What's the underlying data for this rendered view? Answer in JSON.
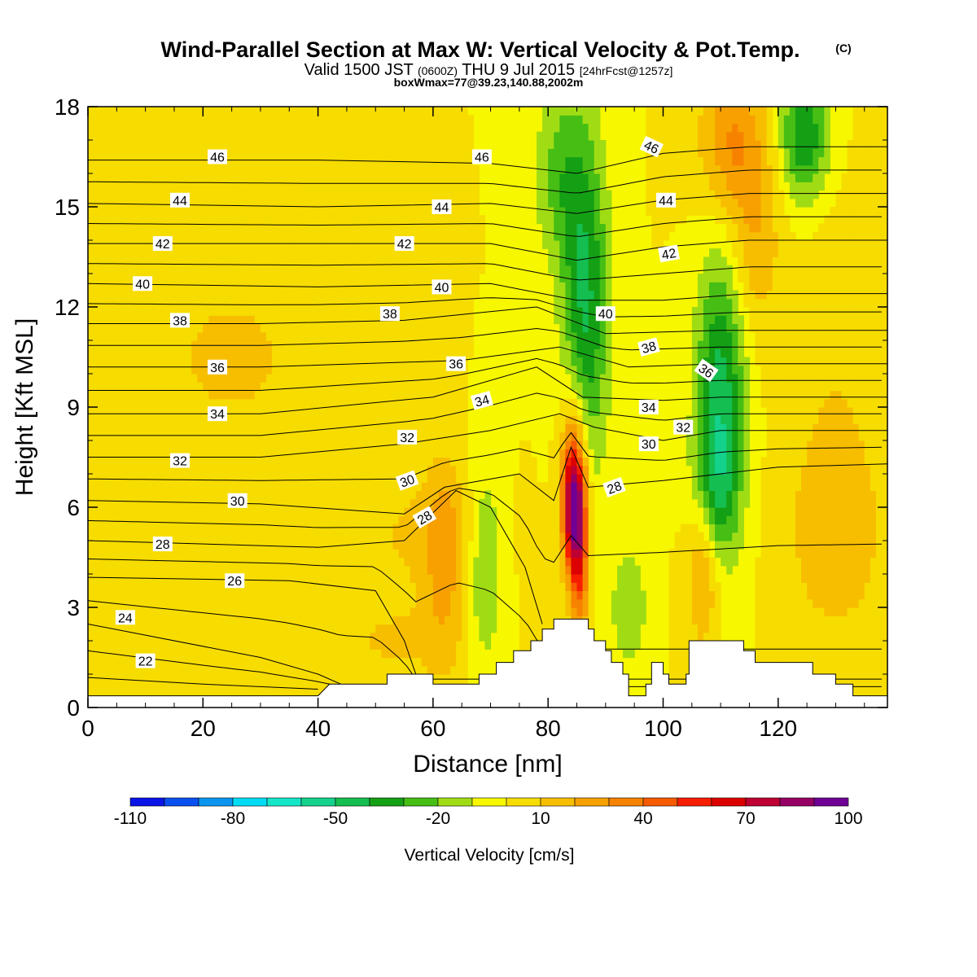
{
  "chart_data": {
    "type": "heatmap",
    "title": "Wind-Parallel Section at Max W: Vertical Velocity & Pot.Temp.",
    "title_mark": "(C)",
    "subtitle_valid": "Valid 1500 JST",
    "subtitle_utc": "(0600Z)",
    "subtitle_date": "THU 9 Jul 2015",
    "subtitle_fcst": "[24hrFcst@1257z]",
    "subtitle_box": "boxWmax=77@39.23,140.88,2002m",
    "xlabel": "Distance [nm]",
    "ylabel": "Height [Kft MSL]",
    "xlim": [
      0,
      139
    ],
    "ylim": [
      0,
      18
    ],
    "x_ticks": [
      0,
      20,
      40,
      60,
      80,
      100,
      120
    ],
    "x_tick_labels": [
      "0",
      "20",
      "40",
      "60",
      "80",
      "100",
      "120"
    ],
    "y_ticks": [
      0,
      3,
      6,
      9,
      12,
      15,
      18
    ],
    "y_tick_labels": [
      "0",
      "3",
      "6",
      "9",
      "12",
      "15",
      "18"
    ],
    "background_color": "#f7f700",
    "colorbar": {
      "label": "Vertical Velocity [cm/s]",
      "tick_labels": [
        "-110",
        "-80",
        "-50",
        "-20",
        "10",
        "40",
        "70",
        "100"
      ],
      "tick_index": [
        0,
        3,
        6,
        9,
        12,
        15,
        18,
        21
      ],
      "colors": [
        "#0a14e6",
        "#0a50f0",
        "#0a96f0",
        "#00dcf5",
        "#14e6c8",
        "#14d28c",
        "#14be50",
        "#14a014",
        "#46be14",
        "#a0dc14",
        "#f7f700",
        "#f7dc00",
        "#f7be00",
        "#f7a000",
        "#f78200",
        "#f75a00",
        "#f71e00",
        "#dc0000",
        "#be0032",
        "#960064",
        "#6e0096"
      ]
    },
    "terrain_kft": [
      [
        0,
        0.35
      ],
      [
        40,
        0.35
      ],
      [
        42,
        0.7
      ],
      [
        52,
        0.7
      ],
      [
        52,
        1.0
      ],
      [
        60,
        1.0
      ],
      [
        60,
        0.7
      ],
      [
        68,
        0.7
      ],
      [
        68,
        1.0
      ],
      [
        71,
        1.0
      ],
      [
        71,
        1.35
      ],
      [
        74,
        1.35
      ],
      [
        74,
        1.7
      ],
      [
        77,
        1.7
      ],
      [
        77,
        2.0
      ],
      [
        79,
        2.0
      ],
      [
        79,
        2.35
      ],
      [
        81,
        2.35
      ],
      [
        81,
        2.65
      ],
      [
        87,
        2.65
      ],
      [
        87,
        2.35
      ],
      [
        88,
        2.35
      ],
      [
        88,
        2.0
      ],
      [
        90,
        2.0
      ],
      [
        90,
        1.7
      ],
      [
        91,
        1.7
      ],
      [
        91,
        1.35
      ],
      [
        93,
        1.35
      ],
      [
        93,
        1.0
      ],
      [
        94,
        1.0
      ],
      [
        94,
        0.35
      ],
      [
        97,
        0.35
      ],
      [
        97,
        0.7
      ],
      [
        98,
        0.7
      ],
      [
        98,
        1.35
      ],
      [
        100,
        1.35
      ],
      [
        100,
        1.0
      ],
      [
        101,
        1.0
      ],
      [
        101,
        0.7
      ],
      [
        104,
        0.7
      ],
      [
        104,
        1.0
      ],
      [
        104.5,
        1.0
      ],
      [
        104.5,
        2.0
      ],
      [
        114,
        2.0
      ],
      [
        114,
        1.7
      ],
      [
        116,
        1.7
      ],
      [
        116,
        1.35
      ],
      [
        126,
        1.35
      ],
      [
        126,
        1.0
      ],
      [
        130,
        1.0
      ],
      [
        130,
        0.7
      ],
      [
        133,
        0.7
      ],
      [
        133,
        0.35
      ],
      [
        139,
        0.35
      ]
    ],
    "velocity_features": [
      {
        "x": 84.5,
        "y": 6.0,
        "sx": 1.3,
        "sy": 1.3,
        "w": 78
      },
      {
        "x": 84.5,
        "y": 7.2,
        "sx": 1.7,
        "sy": 1.8,
        "w": 35
      },
      {
        "x": 85.5,
        "y": 4.0,
        "sx": 1.2,
        "sy": 1.5,
        "w": 40
      },
      {
        "x": 86.5,
        "y": 12.0,
        "sx": 2.8,
        "sy": 3.6,
        "w": -42
      },
      {
        "x": 82.0,
        "y": 16.0,
        "sx": 3.2,
        "sy": 2.0,
        "w": -22
      },
      {
        "x": 110.0,
        "y": 9.3,
        "sx": 3.0,
        "sy": 3.0,
        "w": -45
      },
      {
        "x": 109.0,
        "y": 6.5,
        "sx": 2.8,
        "sy": 1.5,
        "w": -22
      },
      {
        "x": 124.5,
        "y": 17.2,
        "sx": 3.0,
        "sy": 1.4,
        "w": -40
      },
      {
        "x": 112.0,
        "y": 17.0,
        "sx": 4.0,
        "sy": 1.6,
        "w": 30
      },
      {
        "x": 116.0,
        "y": 14.0,
        "sx": 3.0,
        "sy": 2.0,
        "w": 18
      },
      {
        "x": 69.0,
        "y": 4.3,
        "sx": 2.2,
        "sy": 2.2,
        "w": -22
      },
      {
        "x": 94.0,
        "y": 3.0,
        "sx": 2.2,
        "sy": 1.3,
        "w": -20
      },
      {
        "x": 62.0,
        "y": 4.5,
        "sx": 2.6,
        "sy": 2.4,
        "w": 20
      },
      {
        "x": 107.0,
        "y": 4.2,
        "sx": 2.0,
        "sy": 1.6,
        "w": 28
      },
      {
        "x": 25.0,
        "y": 10.5,
        "sx": 12.0,
        "sy": 2.2,
        "w": 12
      },
      {
        "x": 58.0,
        "y": 5.2,
        "sx": 8.0,
        "sy": 1.2,
        "w": 12
      },
      {
        "x": 130.0,
        "y": 5.0,
        "sx": 6.0,
        "sy": 2.0,
        "w": 14
      },
      {
        "x": 130.0,
        "y": 9.0,
        "sx": 6.0,
        "sy": 4.0,
        "w": 9
      },
      {
        "x": 53.0,
        "y": 2.0,
        "sx": 8.0,
        "sy": 1.0,
        "w": 11
      }
    ],
    "theta_contours": [
      {
        "label": "22",
        "pts": [
          [
            0,
            0.9
          ],
          [
            20,
            0.7
          ],
          [
            40,
            0.55
          ]
        ]
      },
      {
        "label": "24",
        "pts": [
          [
            0,
            2.5
          ],
          [
            30,
            1.5
          ],
          [
            40,
            1.0
          ],
          [
            44,
            0.7
          ]
        ]
      },
      {
        "label": "26",
        "pts": [
          [
            0,
            3.9
          ],
          [
            35,
            3.8
          ],
          [
            50,
            3.5
          ],
          [
            55,
            2.0
          ],
          [
            57,
            1.0
          ]
        ]
      },
      {
        "label": "28",
        "pts": [
          [
            0,
            5.0
          ],
          [
            40,
            4.8
          ],
          [
            55,
            5.0
          ],
          [
            64,
            6.5
          ],
          [
            70,
            6.0
          ],
          [
            76,
            4.2
          ],
          [
            79,
            2.5
          ]
        ]
      },
      {
        "label": "30",
        "pts": [
          [
            0,
            6.2
          ],
          [
            30,
            6.1
          ],
          [
            55,
            5.8
          ],
          [
            62,
            6.6
          ],
          [
            75,
            7.0
          ],
          [
            81,
            6.2
          ],
          [
            84,
            7.8
          ],
          [
            87,
            6.6
          ],
          [
            100,
            6.8
          ],
          [
            120,
            7.2
          ],
          [
            139,
            7.3
          ]
        ]
      },
      {
        "label": "32",
        "pts": [
          [
            0,
            7.5
          ],
          [
            30,
            7.5
          ],
          [
            55,
            7.9
          ],
          [
            70,
            8.3
          ],
          [
            82,
            8.8
          ],
          [
            88,
            8.4
          ],
          [
            100,
            8.0
          ],
          [
            110,
            8.3
          ],
          [
            139,
            8.3
          ]
        ]
      },
      {
        "label": "34",
        "pts": [
          [
            0,
            8.8
          ],
          [
            30,
            8.8
          ],
          [
            60,
            9.3
          ],
          [
            78,
            10.2
          ],
          [
            86,
            9.3
          ],
          [
            100,
            9.2
          ],
          [
            110,
            9.3
          ],
          [
            139,
            9.3
          ]
        ]
      },
      {
        "label": "36",
        "pts": [
          [
            0,
            10.2
          ],
          [
            30,
            10.2
          ],
          [
            65,
            10.4
          ],
          [
            82,
            10.8
          ],
          [
            94,
            10.2
          ],
          [
            110,
            10.3
          ],
          [
            120,
            10.3
          ],
          [
            139,
            10.3
          ]
        ]
      },
      {
        "label": "38",
        "pts": [
          [
            0,
            11.5
          ],
          [
            30,
            11.5
          ],
          [
            55,
            11.6
          ],
          [
            78,
            12.0
          ],
          [
            90,
            11.2
          ],
          [
            110,
            11.3
          ],
          [
            139,
            11.3
          ]
        ]
      },
      {
        "label": "40",
        "pts": [
          [
            0,
            12.7
          ],
          [
            40,
            12.6
          ],
          [
            70,
            12.7
          ],
          [
            85,
            12.2
          ],
          [
            100,
            12.2
          ],
          [
            115,
            12.4
          ],
          [
            139,
            12.4
          ]
        ]
      },
      {
        "label": "42",
        "pts": [
          [
            0,
            13.9
          ],
          [
            40,
            13.9
          ],
          [
            70,
            13.9
          ],
          [
            85,
            13.4
          ],
          [
            100,
            13.8
          ],
          [
            115,
            14.0
          ],
          [
            139,
            14.0
          ]
        ]
      },
      {
        "label": "44",
        "pts": [
          [
            0,
            15.1
          ],
          [
            40,
            15.0
          ],
          [
            70,
            15.1
          ],
          [
            85,
            14.8
          ],
          [
            100,
            15.2
          ],
          [
            115,
            15.4
          ],
          [
            139,
            15.4
          ]
        ]
      },
      {
        "label": "46",
        "pts": [
          [
            0,
            16.4
          ],
          [
            40,
            16.4
          ],
          [
            70,
            16.3
          ],
          [
            85,
            16.0
          ],
          [
            100,
            16.6
          ],
          [
            115,
            16.8
          ],
          [
            139,
            16.8
          ]
        ]
      }
    ],
    "theta_labels": [
      {
        "text": "22",
        "x": 10,
        "y": 1.4,
        "rot": 0
      },
      {
        "text": "24",
        "x": 6.5,
        "y": 2.7,
        "rot": 0
      },
      {
        "text": "26",
        "x": 25.5,
        "y": 3.8,
        "rot": 0
      },
      {
        "text": "28",
        "x": 13,
        "y": 4.9,
        "rot": 0
      },
      {
        "text": "28",
        "x": 58.5,
        "y": 5.7,
        "rot": -30
      },
      {
        "text": "28",
        "x": 91.5,
        "y": 6.6,
        "rot": -20
      },
      {
        "text": "30",
        "x": 26,
        "y": 6.2,
        "rot": 0
      },
      {
        "text": "30",
        "x": 55.5,
        "y": 6.8,
        "rot": -20
      },
      {
        "text": "30",
        "x": 97.5,
        "y": 7.9,
        "rot": 0
      },
      {
        "text": "32",
        "x": 16,
        "y": 7.4,
        "rot": 0
      },
      {
        "text": "32",
        "x": 55.5,
        "y": 8.1,
        "rot": 0
      },
      {
        "text": "32",
        "x": 103.5,
        "y": 8.4,
        "rot": 0
      },
      {
        "text": "34",
        "x": 22.5,
        "y": 8.8,
        "rot": 0
      },
      {
        "text": "34",
        "x": 68.5,
        "y": 9.2,
        "rot": -15
      },
      {
        "text": "34",
        "x": 97.5,
        "y": 9.0,
        "rot": 0
      },
      {
        "text": "36",
        "x": 22.5,
        "y": 10.2,
        "rot": 0
      },
      {
        "text": "36",
        "x": 64,
        "y": 10.3,
        "rot": 0
      },
      {
        "text": "36",
        "x": 107.5,
        "y": 10.1,
        "rot": 35
      },
      {
        "text": "38",
        "x": 16,
        "y": 11.6,
        "rot": 0
      },
      {
        "text": "38",
        "x": 52.5,
        "y": 11.8,
        "rot": 0
      },
      {
        "text": "38",
        "x": 97.5,
        "y": 10.8,
        "rot": -15
      },
      {
        "text": "40",
        "x": 9.5,
        "y": 12.7,
        "rot": 0
      },
      {
        "text": "40",
        "x": 61.5,
        "y": 12.6,
        "rot": 0
      },
      {
        "text": "40",
        "x": 90,
        "y": 11.8,
        "rot": 0
      },
      {
        "text": "42",
        "x": 13,
        "y": 13.9,
        "rot": 0
      },
      {
        "text": "42",
        "x": 55,
        "y": 13.9,
        "rot": 0
      },
      {
        "text": "42",
        "x": 101,
        "y": 13.6,
        "rot": -10
      },
      {
        "text": "44",
        "x": 16,
        "y": 15.2,
        "rot": 0
      },
      {
        "text": "44",
        "x": 61.5,
        "y": 15.0,
        "rot": 0
      },
      {
        "text": "44",
        "x": 100.5,
        "y": 15.2,
        "rot": 0
      },
      {
        "text": "46",
        "x": 22.5,
        "y": 16.5,
        "rot": 0
      },
      {
        "text": "46",
        "x": 68.5,
        "y": 16.5,
        "rot": 0
      },
      {
        "text": "46",
        "x": 98,
        "y": 16.8,
        "rot": 25
      }
    ]
  }
}
